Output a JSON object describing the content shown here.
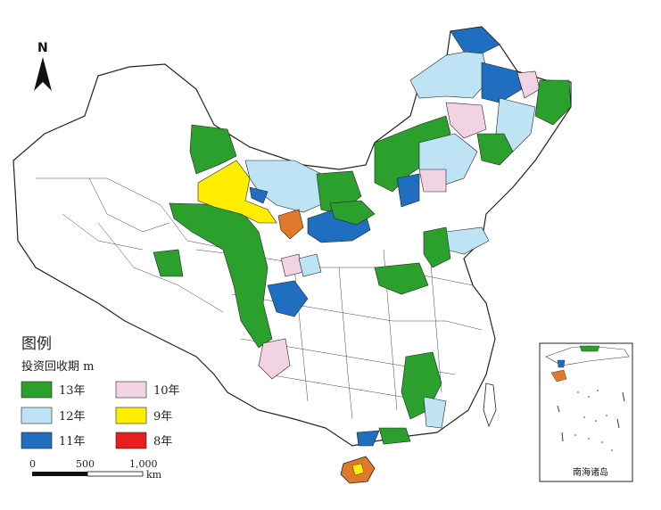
{
  "north_label": "N",
  "legend": {
    "title": "图例",
    "subtitle": "投资回收期 m",
    "items": [
      {
        "label": "13年",
        "color": "#2ca02c"
      },
      {
        "label": "12年",
        "color": "#bde3f4"
      },
      {
        "label": "11年",
        "color": "#1f6ebf"
      },
      {
        "label": "10年",
        "color": "#f2d3e4"
      },
      {
        "label": "9年",
        "color": "#ffee00"
      },
      {
        "label": "8年",
        "color": "#e81e1e"
      }
    ]
  },
  "scale_bar": {
    "ticks": [
      "0",
      "500",
      "1,000"
    ],
    "unit": "km"
  },
  "inset": {
    "label": "南海诸岛"
  },
  "colors": {
    "y13": "#2ca02c",
    "y12": "#bde3f4",
    "y11": "#1f6ebf",
    "y10": "#f2d3e4",
    "y9": "#ffee00",
    "y8": "#e81e1e",
    "orange": "#e07a2a",
    "outline": "#222222"
  }
}
